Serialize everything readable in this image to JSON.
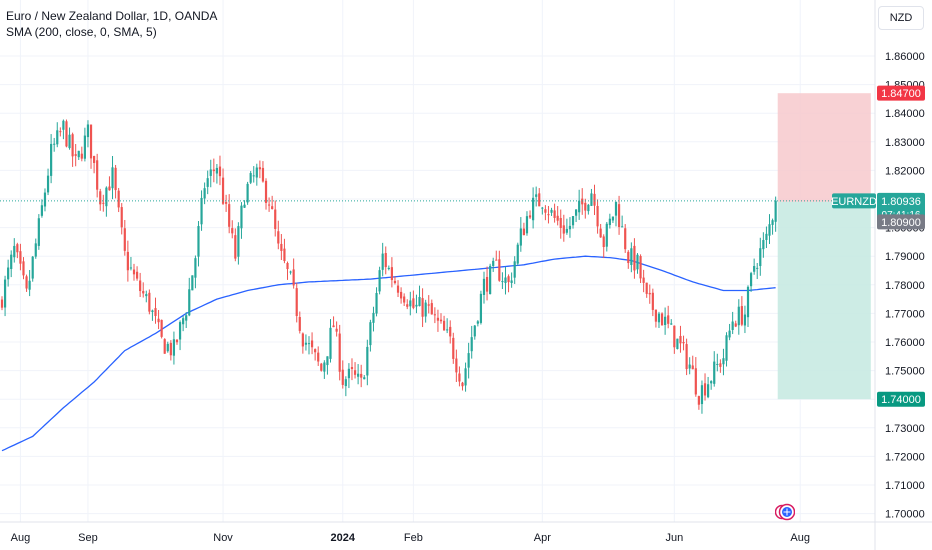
{
  "legend": {
    "title": "Euro / New Zealand Dollar, 1D, OANDA",
    "indicator": "SMA (200, close, 0, SMA, 5)"
  },
  "currency_button": "NZD",
  "colors": {
    "up": "#26a69a",
    "down": "#ef5350",
    "sma": "#2962ff",
    "stop_zone": "#f7c9cc",
    "target_zone": "#c4e9e1",
    "grid": "#f0f3fa",
    "stop_label": "#f23645",
    "target_label": "#089981",
    "price_label": "#26a69a",
    "gray_label": "#787b86"
  },
  "chart_data": {
    "type": "candlestick",
    "symbol": "EURNZD",
    "ylim": [
      1.695,
      1.869
    ],
    "y_ticks": [
      "1.86000",
      "1.85000",
      "1.84000",
      "1.83000",
      "1.82000",
      "1.81000",
      "1.80000",
      "1.79000",
      "1.78000",
      "1.77000",
      "1.76000",
      "1.75000",
      "1.74000",
      "1.73000",
      "1.72000",
      "1.71000",
      "1.70000"
    ],
    "x_ticks": [
      {
        "label": "Aug",
        "bar": 6,
        "bold": false
      },
      {
        "label": "Sep",
        "bar": 28,
        "bold": false
      },
      {
        "label": "Nov",
        "bar": 72,
        "bold": false
      },
      {
        "label": "2024",
        "bar": 111,
        "bold": true
      },
      {
        "label": "Feb",
        "bar": 134,
        "bold": false
      },
      {
        "label": "Apr",
        "bar": 176,
        "bold": false
      },
      {
        "label": "Jun",
        "bar": 219,
        "bold": false
      },
      {
        "label": "Aug",
        "bar": 260,
        "bold": false
      }
    ],
    "bars_total_span": 285,
    "close_path": [
      [
        0,
        1.776
      ],
      [
        4,
        1.792
      ],
      [
        8,
        1.776
      ],
      [
        12,
        1.8
      ],
      [
        16,
        1.826
      ],
      [
        20,
        1.835
      ],
      [
        24,
        1.822
      ],
      [
        28,
        1.833
      ],
      [
        32,
        1.81
      ],
      [
        36,
        1.818
      ],
      [
        40,
        1.79
      ],
      [
        44,
        1.78
      ],
      [
        48,
        1.773
      ],
      [
        52,
        1.76
      ],
      [
        56,
        1.757
      ],
      [
        60,
        1.772
      ],
      [
        63,
        1.79
      ],
      [
        66,
        1.815
      ],
      [
        70,
        1.822
      ],
      [
        73,
        1.805
      ],
      [
        76,
        1.79
      ],
      [
        79,
        1.812
      ],
      [
        83,
        1.819
      ],
      [
        87,
        1.81
      ],
      [
        90,
        1.792
      ],
      [
        94,
        1.781
      ],
      [
        98,
        1.762
      ],
      [
        101,
        1.756
      ],
      [
        104,
        1.75
      ],
      [
        108,
        1.766
      ],
      [
        111,
        1.747
      ],
      [
        114,
        1.748
      ],
      [
        117,
        1.745
      ],
      [
        120,
        1.764
      ],
      [
        124,
        1.79
      ],
      [
        127,
        1.783
      ],
      [
        131,
        1.777
      ],
      [
        134,
        1.772
      ],
      [
        138,
        1.772
      ],
      [
        142,
        1.766
      ],
      [
        146,
        1.76
      ],
      [
        150,
        1.746
      ],
      [
        153,
        1.762
      ],
      [
        157,
        1.78
      ],
      [
        161,
        1.786
      ],
      [
        165,
        1.78
      ],
      [
        169,
        1.797
      ],
      [
        172,
        1.807
      ],
      [
        176,
        1.81
      ],
      [
        180,
        1.803
      ],
      [
        184,
        1.799
      ],
      [
        188,
        1.806
      ],
      [
        192,
        1.813
      ],
      [
        196,
        1.795
      ],
      [
        200,
        1.808
      ],
      [
        204,
        1.79
      ],
      [
        207,
        1.787
      ],
      [
        210,
        1.774
      ],
      [
        214,
        1.77
      ],
      [
        217,
        1.765
      ],
      [
        221,
        1.758
      ],
      [
        224,
        1.752
      ],
      [
        227,
        1.742
      ],
      [
        231,
        1.748
      ],
      [
        235,
        1.755
      ],
      [
        238,
        1.768
      ],
      [
        242,
        1.77
      ],
      [
        245,
        1.787
      ],
      [
        249,
        1.796
      ],
      [
        252,
        1.8094
      ]
    ],
    "sma_path": [
      [
        0,
        1.722
      ],
      [
        10,
        1.727
      ],
      [
        20,
        1.737
      ],
      [
        30,
        1.746
      ],
      [
        40,
        1.757
      ],
      [
        50,
        1.763
      ],
      [
        60,
        1.77
      ],
      [
        70,
        1.775
      ],
      [
        80,
        1.778
      ],
      [
        90,
        1.78
      ],
      [
        100,
        1.781
      ],
      [
        110,
        1.7815
      ],
      [
        120,
        1.782
      ],
      [
        130,
        1.783
      ],
      [
        140,
        1.784
      ],
      [
        150,
        1.785
      ],
      [
        160,
        1.786
      ],
      [
        170,
        1.787
      ],
      [
        180,
        1.789
      ],
      [
        190,
        1.79
      ],
      [
        198,
        1.7895
      ],
      [
        205,
        1.7885
      ],
      [
        215,
        1.785
      ],
      [
        225,
        1.781
      ],
      [
        235,
        1.778
      ],
      [
        243,
        1.778
      ],
      [
        252,
        1.779
      ]
    ],
    "position": {
      "stop": 1.847,
      "entry": 1.809,
      "target": 1.74,
      "start_bar": 253,
      "end_bar": 283
    },
    "labels": {
      "stop": "1.84700",
      "symbol": "EURNZD",
      "price": "1.80936",
      "countdown": "07:41:16",
      "entry": "1.80900",
      "target": "1.74000"
    }
  }
}
